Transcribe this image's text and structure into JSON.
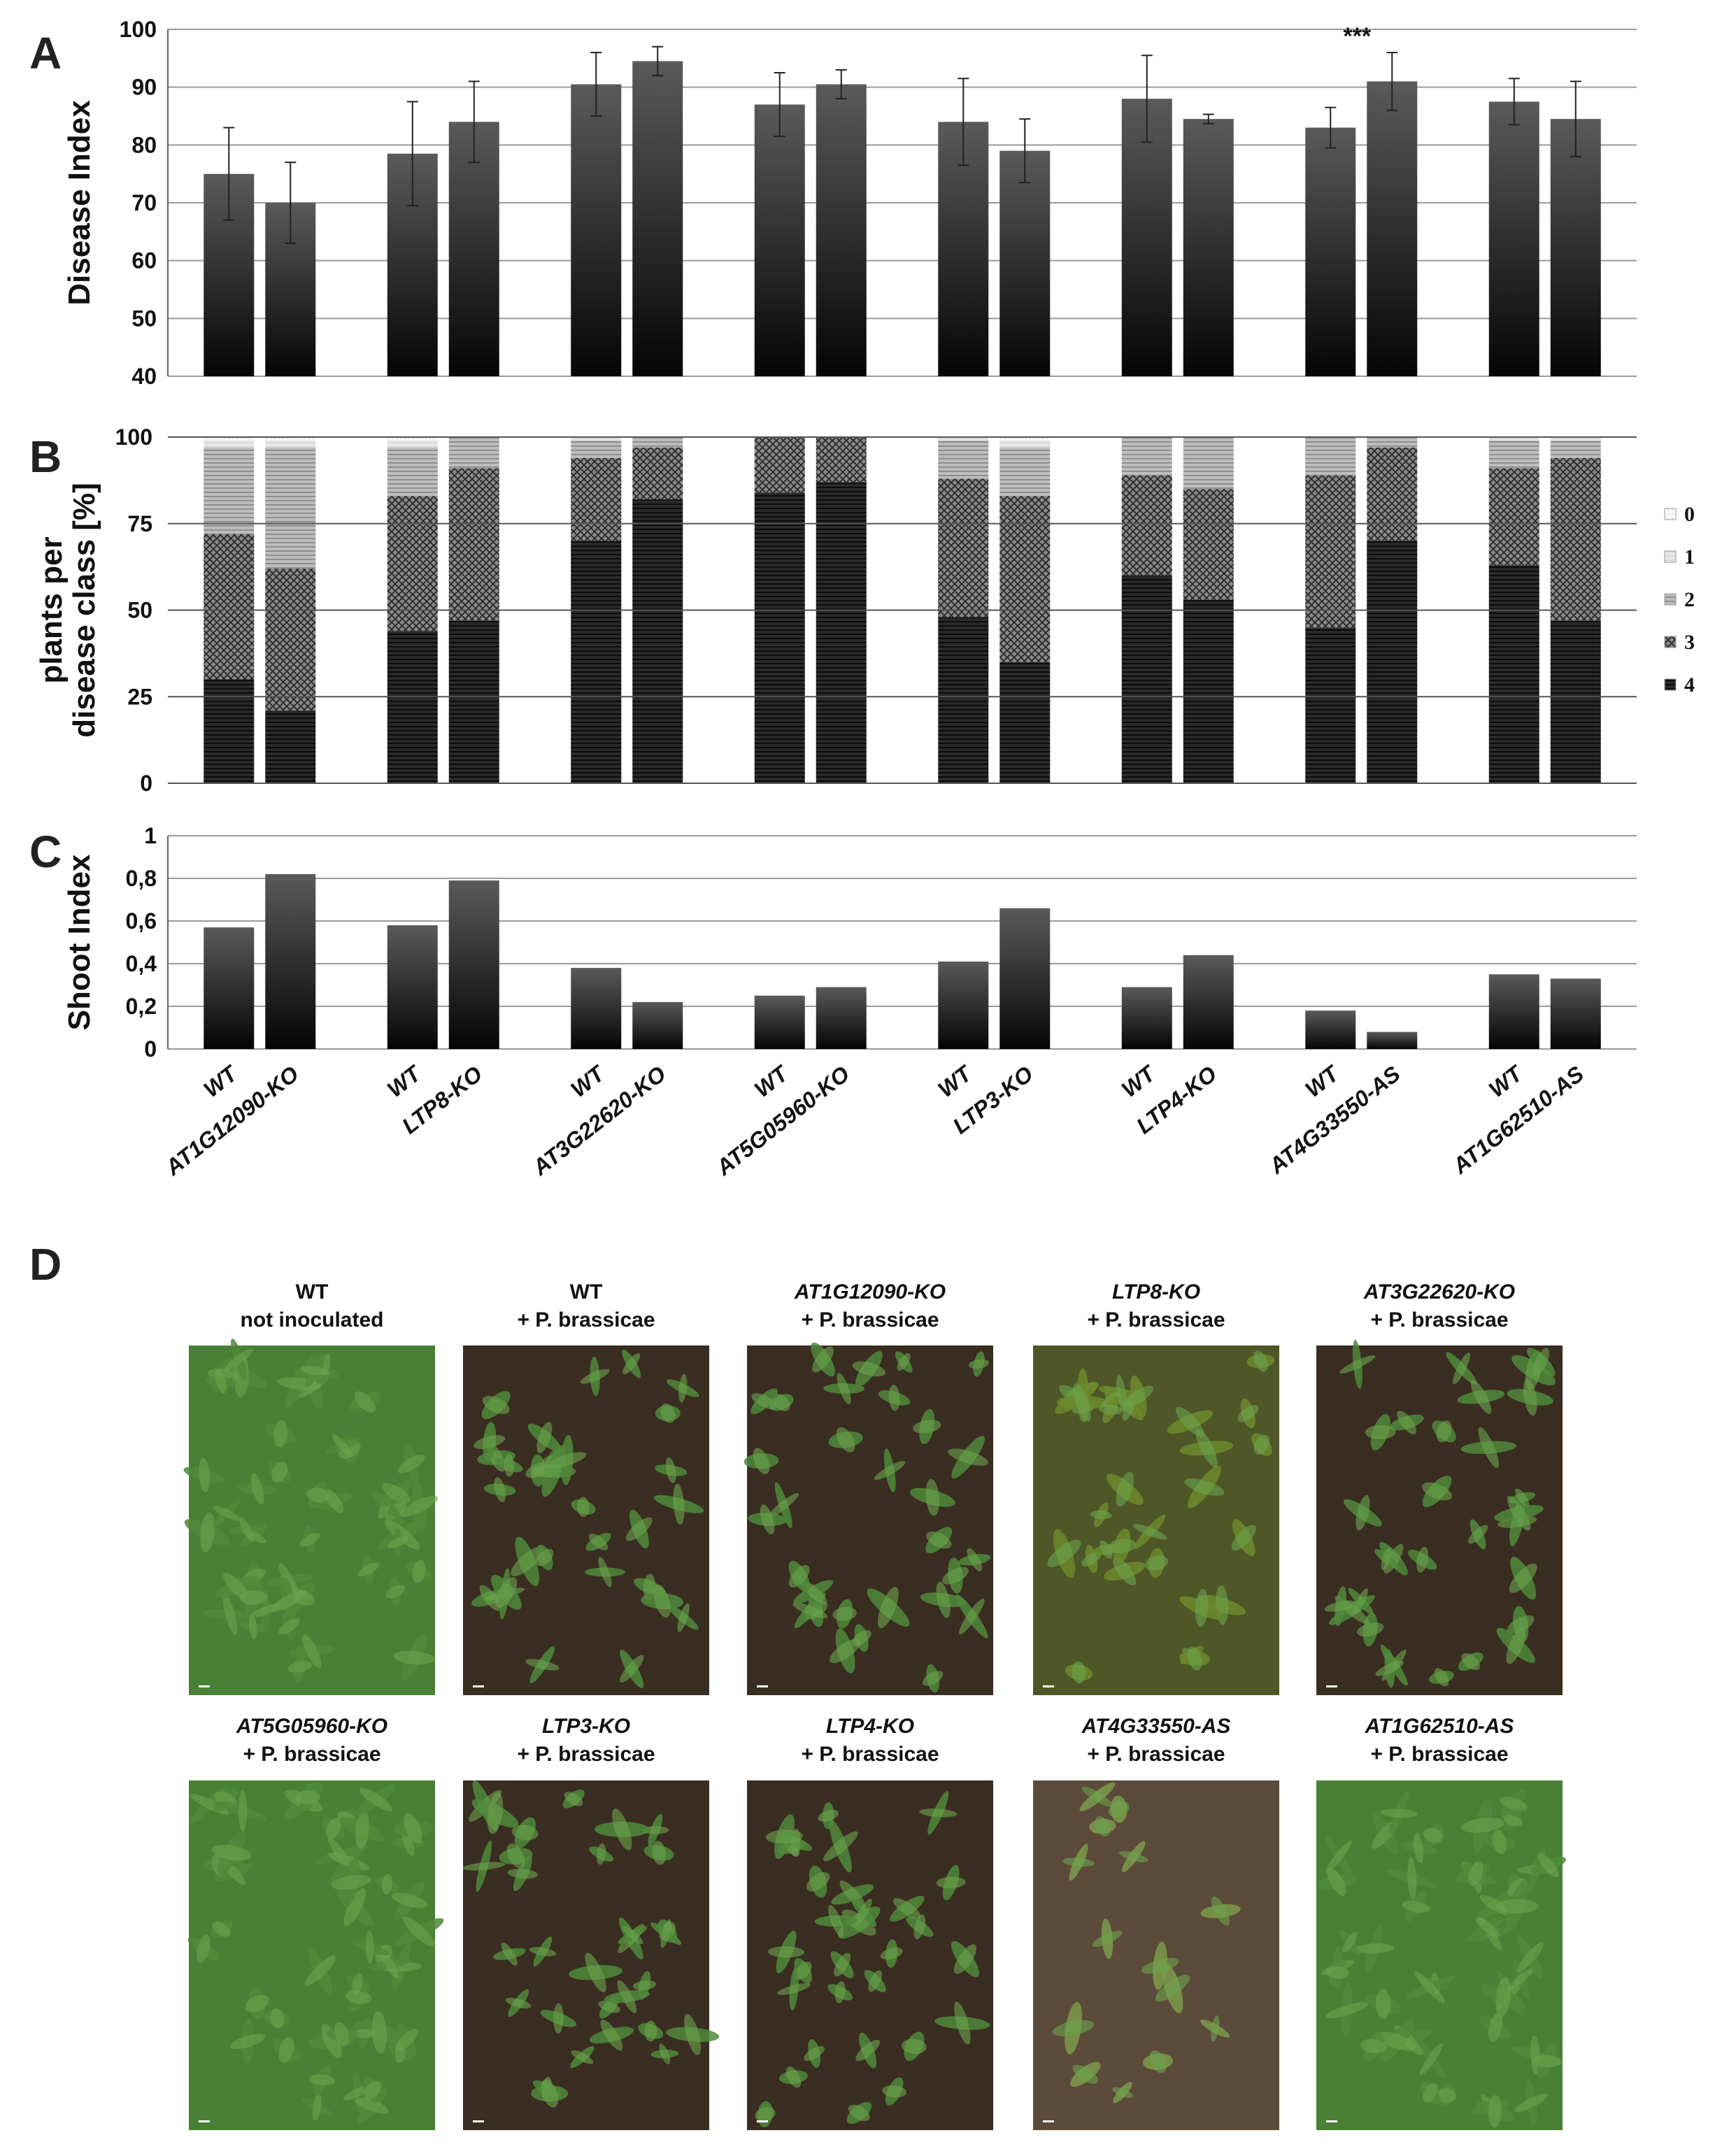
{
  "panels": {
    "A": "A",
    "B": "B",
    "C": "C",
    "D": "D"
  },
  "colors": {
    "bar_top": "#5a5a5a",
    "bar_bottom": "#050505",
    "class0": "#f4f4f4",
    "class1": "#e0e0e0",
    "class2": "#b2b2b2",
    "class3": "#7e7e7e",
    "class4": "#202020",
    "grid": "#9a9a9a",
    "soil": "#3a2d22",
    "leaf": "#4f8a3a"
  },
  "x_labels": [
    "WT",
    "AT1G12090-KO",
    "WT",
    "LTP8-KO",
    "WT",
    "AT3G22620-KO",
    "WT",
    "AT5G05960-KO",
    "WT",
    "LTP3-KO",
    "WT",
    "LTP4-KO",
    "WT",
    "AT4G33550-AS",
    "WT",
    "AT1G62510-AS"
  ],
  "chart_data": [
    {
      "type": "bar",
      "ylabel": "Disease Index",
      "ylim": [
        40,
        100
      ],
      "yticks": [
        "40",
        "50",
        "60",
        "70",
        "80",
        "90",
        "100"
      ],
      "values": [
        75,
        70,
        78.5,
        84,
        90.5,
        94.5,
        87,
        90.5,
        84,
        79,
        88,
        84.5,
        83,
        91,
        87.5,
        84.5
      ],
      "errors": [
        8,
        7,
        9,
        7,
        5.5,
        2.5,
        5.5,
        2.5,
        7.5,
        5.5,
        7.5,
        0.8,
        3.5,
        5,
        4,
        6.5
      ],
      "significance": [
        {
          "bar": 13,
          "label": "***"
        }
      ],
      "grid": true
    },
    {
      "type": "bar",
      "stacked": true,
      "ylabel": "plants per disease class [%]",
      "ylim": [
        0,
        100
      ],
      "yticks": [
        "0",
        "25",
        "50",
        "75",
        "100"
      ],
      "legend": {
        "placement": "right",
        "title": "",
        "entries": [
          "0",
          "1",
          "2",
          "3",
          "4"
        ]
      },
      "series": [
        {
          "name": "4",
          "values": [
            30,
            21,
            44,
            47,
            70,
            82,
            84,
            87,
            48,
            35,
            60,
            53,
            45,
            70,
            63,
            47
          ]
        },
        {
          "name": "3",
          "values": [
            42,
            41,
            39,
            44,
            24,
            15,
            16,
            13,
            40,
            48,
            29,
            32,
            44,
            27,
            28,
            47
          ]
        },
        {
          "name": "2",
          "values": [
            25,
            35,
            14,
            9,
            5,
            3,
            0,
            0,
            11,
            14,
            11,
            15,
            11,
            3,
            8,
            5
          ]
        },
        {
          "name": "1",
          "values": [
            2,
            2,
            2,
            0,
            1,
            0,
            0,
            0,
            1,
            2,
            0,
            0,
            0,
            0,
            1,
            1
          ]
        },
        {
          "name": "0",
          "values": [
            1,
            1,
            1,
            0,
            0,
            0,
            0,
            0,
            0,
            1,
            0,
            0,
            0,
            0,
            0,
            0
          ]
        }
      ],
      "grid": true
    },
    {
      "type": "bar",
      "ylabel": "Shoot Index",
      "ylim": [
        0,
        1
      ],
      "yticks": [
        "0",
        "0,2",
        "0,4",
        "0,6",
        "0,8",
        "1"
      ],
      "values": [
        0.57,
        0.82,
        0.58,
        0.79,
        0.38,
        0.22,
        0.25,
        0.29,
        0.41,
        0.66,
        0.29,
        0.44,
        0.18,
        0.08,
        0.35,
        0.33
      ],
      "grid": true
    }
  ],
  "photos": [
    {
      "line1": "WT",
      "line2": "not inoculated",
      "italic1": false,
      "tone": "green"
    },
    {
      "line1": "WT",
      "line2": "+ P. brassicae",
      "italic1": false,
      "tone": "soil"
    },
    {
      "line1": "AT1G12090-KO",
      "line2": "+ P. brassicae",
      "italic1": true,
      "tone": "soil"
    },
    {
      "line1": "LTP8-KO",
      "line2": "+ P. brassicae",
      "italic1": true,
      "tone": "olive"
    },
    {
      "line1": "AT3G22620-KO",
      "line2": "+ P. brassicae",
      "italic1": true,
      "tone": "soil"
    },
    {
      "line1": "AT5G05960-KO",
      "line2": "+ P. brassicae",
      "italic1": true,
      "tone": "green"
    },
    {
      "line1": "LTP3-KO",
      "line2": "+ P. brassicae",
      "italic1": true,
      "tone": "soil"
    },
    {
      "line1": "LTP4-KO",
      "line2": "+ P. brassicae",
      "italic1": true,
      "tone": "soil"
    },
    {
      "line1": "AT4G33550-AS",
      "line2": "+ P. brassicae",
      "italic1": true,
      "tone": "sparse"
    },
    {
      "line1": "AT1G62510-AS",
      "line2": "+ P. brassicae",
      "italic1": true,
      "tone": "green"
    }
  ]
}
